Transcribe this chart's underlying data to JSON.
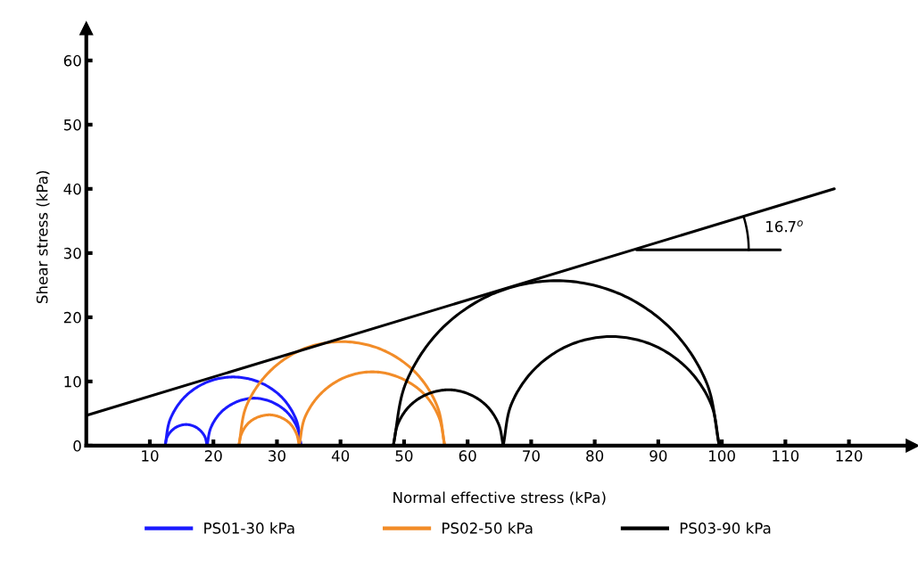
{
  "chart_data": {
    "type": "line",
    "xlabel": "Normal effective stress (kPa)",
    "ylabel": "Shear stress (kPa)",
    "xlim": [
      0,
      130
    ],
    "ylim": [
      0,
      65
    ],
    "xticks": [
      10,
      20,
      30,
      40,
      50,
      60,
      70,
      80,
      90,
      100,
      110,
      120
    ],
    "yticks": [
      0,
      10,
      20,
      30,
      40,
      50,
      60
    ],
    "grid": false,
    "legend": "bottom",
    "marker": "none",
    "line_style": "solid",
    "series": [
      {
        "name": "PS01-30 kPa",
        "color": "#1a1aff",
        "x": [
          12.4,
          12.7,
          13.4,
          14.4,
          15.7,
          17.0,
          18.0,
          18.7,
          19.0
        ],
        "values": [
          0,
          1.3,
          2.3,
          3.0,
          3.3,
          3.0,
          2.3,
          1.3,
          0
        ]
      },
      {
        "color": "#1a1aff",
        "x": [
          19.0,
          19.6,
          21.2,
          23.6,
          26.4,
          29.2,
          31.6,
          33.2,
          33.8
        ],
        "values": [
          0,
          2.8,
          5.2,
          6.8,
          7.4,
          6.8,
          5.2,
          2.8,
          0
        ]
      },
      {
        "color": "#1a1aff",
        "x": [
          12.4,
          13.2,
          15.5,
          19.0,
          23.1,
          27.2,
          30.7,
          33.0,
          33.8
        ],
        "values": [
          0,
          4.1,
          7.6,
          9.9,
          10.7,
          9.9,
          7.6,
          4.1,
          0
        ]
      },
      {
        "name": "PS02-50 kPa",
        "color": "#f28c28",
        "x": [
          24.0,
          24.4,
          25.4,
          26.9,
          28.8,
          30.6,
          32.1,
          33.1,
          33.5
        ],
        "values": [
          0,
          1.8,
          3.4,
          4.4,
          4.8,
          4.4,
          3.4,
          1.8,
          0
        ]
      },
      {
        "color": "#f28c28",
        "x": [
          33.5,
          34.4,
          36.9,
          40.6,
          45.0,
          49.3,
          53.1,
          55.5,
          56.4
        ],
        "values": [
          0,
          4.4,
          8.1,
          10.6,
          11.5,
          10.6,
          8.1,
          4.4,
          0
        ]
      },
      {
        "color": "#f28c28",
        "x": [
          24.0,
          25.2,
          28.8,
          34.0,
          40.2,
          46.4,
          51.7,
          55.2,
          56.4
        ],
        "values": [
          0,
          6.2,
          11.5,
          15.0,
          16.2,
          15.0,
          11.5,
          6.2,
          0
        ]
      },
      {
        "name": "PS03-90 kPa",
        "color": "#000000",
        "x": [
          48.3,
          49.0,
          50.8,
          53.6,
          57.0,
          60.3,
          63.1,
          64.9,
          65.6
        ],
        "values": [
          0,
          3.3,
          6.1,
          8.0,
          8.7,
          8.0,
          6.1,
          3.3,
          0
        ]
      },
      {
        "color": "#000000",
        "x": [
          65.6,
          66.9,
          70.6,
          76.1,
          82.6,
          89.1,
          94.6,
          98.3,
          99.6
        ],
        "values": [
          0,
          6.5,
          12.0,
          15.7,
          17.0,
          15.7,
          12.0,
          6.5,
          0
        ]
      },
      {
        "color": "#000000",
        "x": [
          48.3,
          50.3,
          55.8,
          64.1,
          74.0,
          83.8,
          92.1,
          97.6,
          99.6
        ],
        "values": [
          0,
          9.8,
          18.1,
          23.7,
          25.7,
          23.7,
          18.1,
          9.8,
          0
        ]
      },
      {
        "color": "#000000",
        "x": [
          0,
          117.7
        ],
        "values": [
          4.7,
          40.0
        ]
      },
      {
        "color": "#000000",
        "x": [
          86.6,
          109.2
        ],
        "values": [
          30.5,
          30.5
        ]
      }
    ],
    "annotations": [
      "16.7$^{o}$"
    ]
  }
}
